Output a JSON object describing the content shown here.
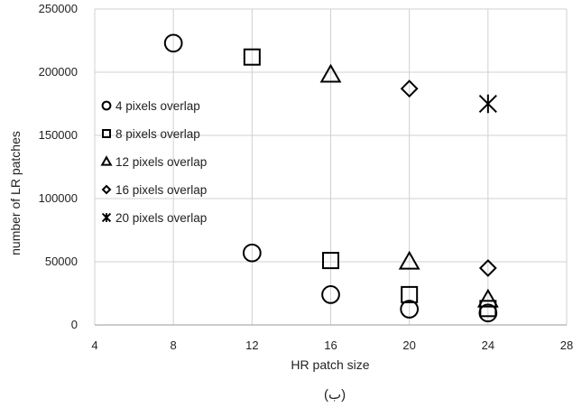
{
  "chart_data": {
    "type": "scatter",
    "xlabel": "HR patch size",
    "ylabel": "number of LR patches",
    "caption": "(ب)",
    "xlim": [
      4,
      28
    ],
    "ylim": [
      0,
      250000
    ],
    "x_ticks": [
      "4",
      "8",
      "12",
      "16",
      "20",
      "24",
      "28"
    ],
    "y_ticks": [
      "0",
      "50000",
      "100000",
      "150000",
      "200000",
      "250000"
    ],
    "grid": true,
    "legend_position": "left",
    "series": [
      {
        "name": "4 pixels overlap",
        "marker": "circle",
        "points": [
          {
            "x": 8,
            "y": 223000
          },
          {
            "x": 12,
            "y": 57000
          },
          {
            "x": 16,
            "y": 24000
          },
          {
            "x": 20,
            "y": 12500
          },
          {
            "x": 24,
            "y": 9500
          }
        ]
      },
      {
        "name": "8 pixels overlap",
        "marker": "square",
        "points": [
          {
            "x": 12,
            "y": 212000
          },
          {
            "x": 16,
            "y": 51000
          },
          {
            "x": 20,
            "y": 24000
          },
          {
            "x": 24,
            "y": 13000
          }
        ]
      },
      {
        "name": "12 pixels overlap",
        "marker": "triangle",
        "points": [
          {
            "x": 16,
            "y": 198000
          },
          {
            "x": 20,
            "y": 50000
          },
          {
            "x": 24,
            "y": 20000
          }
        ]
      },
      {
        "name": "16 pixels overlap",
        "marker": "diamond",
        "points": [
          {
            "x": 20,
            "y": 187000
          },
          {
            "x": 24,
            "y": 45000
          }
        ]
      },
      {
        "name": "20 pixels overlap",
        "marker": "asterisk",
        "points": [
          {
            "x": 24,
            "y": 175000
          }
        ]
      }
    ]
  }
}
